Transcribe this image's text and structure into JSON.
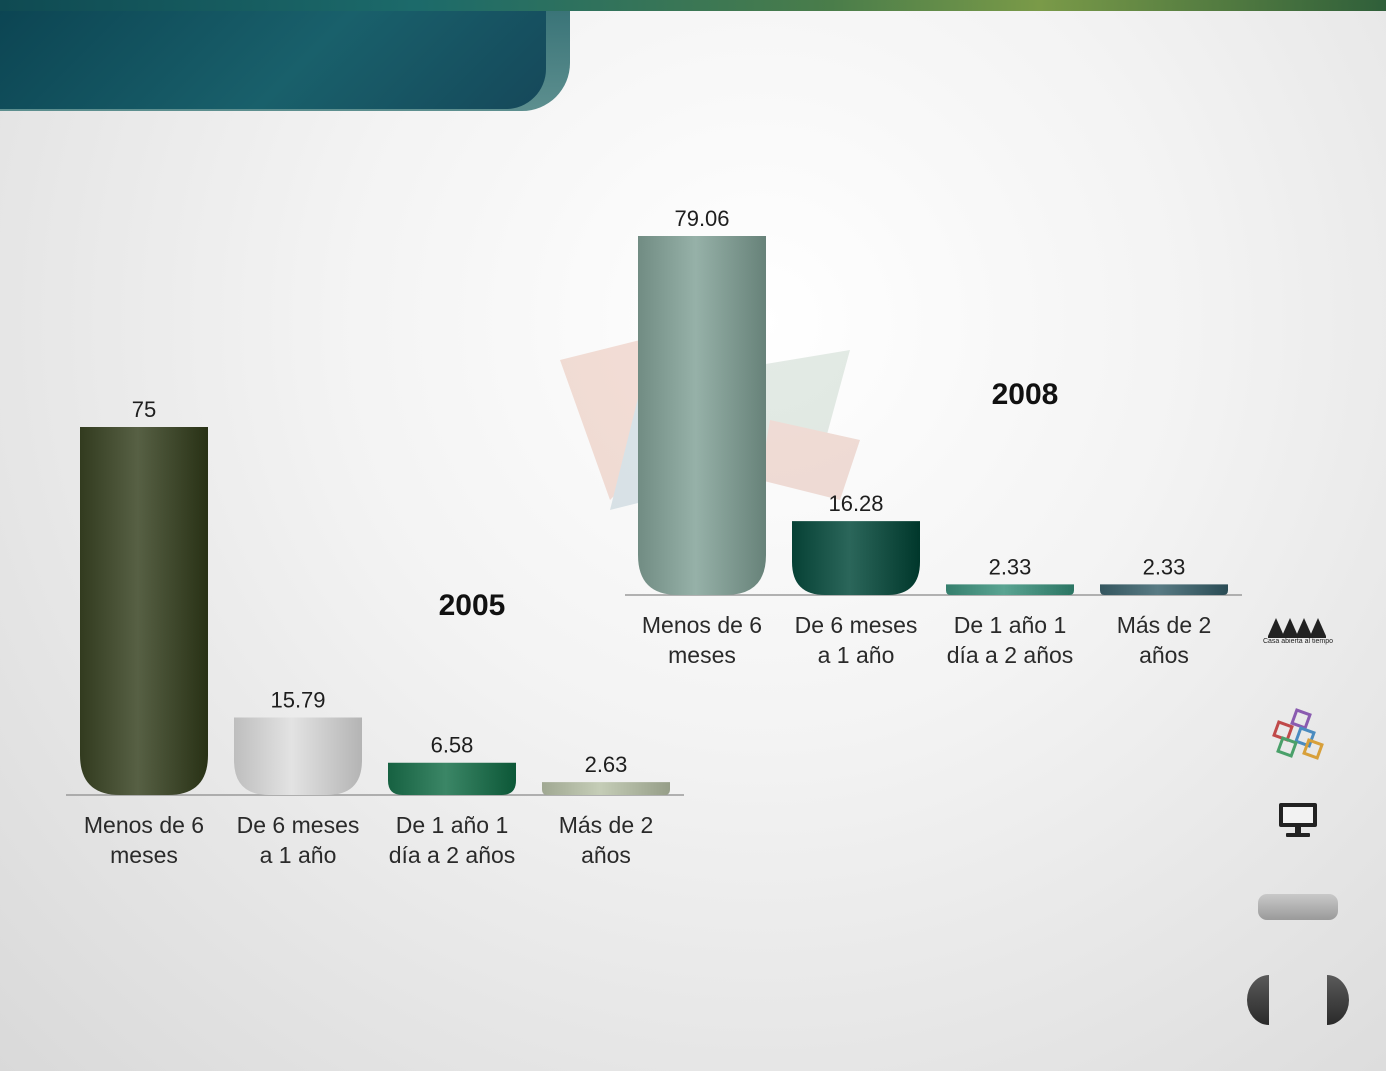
{
  "chart_data": [
    {
      "type": "bar",
      "title": "2005",
      "categories": [
        [
          "Menos de 6",
          "meses"
        ],
        [
          "De 6 meses",
          "a 1 año"
        ],
        [
          "De 1 año 1",
          "día a 2 años"
        ],
        [
          "Más de 2",
          "años"
        ]
      ],
      "values": [
        75,
        15.79,
        6.58,
        2.63
      ],
      "data_labels": [
        "75",
        "15.79",
        "6.58",
        "2.63"
      ],
      "ylim": [
        0,
        75
      ],
      "grid": false,
      "bar_colors": [
        "#4b5438",
        "#d7d7d7",
        "#2f7a5a",
        "#b9c1ab"
      ]
    },
    {
      "type": "bar",
      "title": "2008",
      "categories": [
        [
          "Menos de 6",
          "meses"
        ],
        [
          "De 6 meses",
          "a 1 año"
        ],
        [
          "De 1 año 1",
          "día a 2 años"
        ],
        [
          "Más de 2",
          "años"
        ]
      ],
      "values": [
        79.06,
        16.28,
        2.33,
        2.33
      ],
      "data_labels": [
        "79.06",
        "16.28",
        "2.33",
        "2.33"
      ],
      "ylim": [
        0,
        79.06
      ],
      "grid": false,
      "bar_colors": [
        "#8aa59c",
        "#1f5a4e",
        "#4e9886",
        "#4d6f78"
      ]
    }
  ],
  "logo": {
    "caption": "Casa abierta al tiempo"
  },
  "icons": {
    "logo1": "uam-logo",
    "logo2": "cube-logo",
    "nav1": "monitor-icon",
    "nav2": "gray-button",
    "prev": "prev-arrow",
    "next": "next-arrow"
  }
}
